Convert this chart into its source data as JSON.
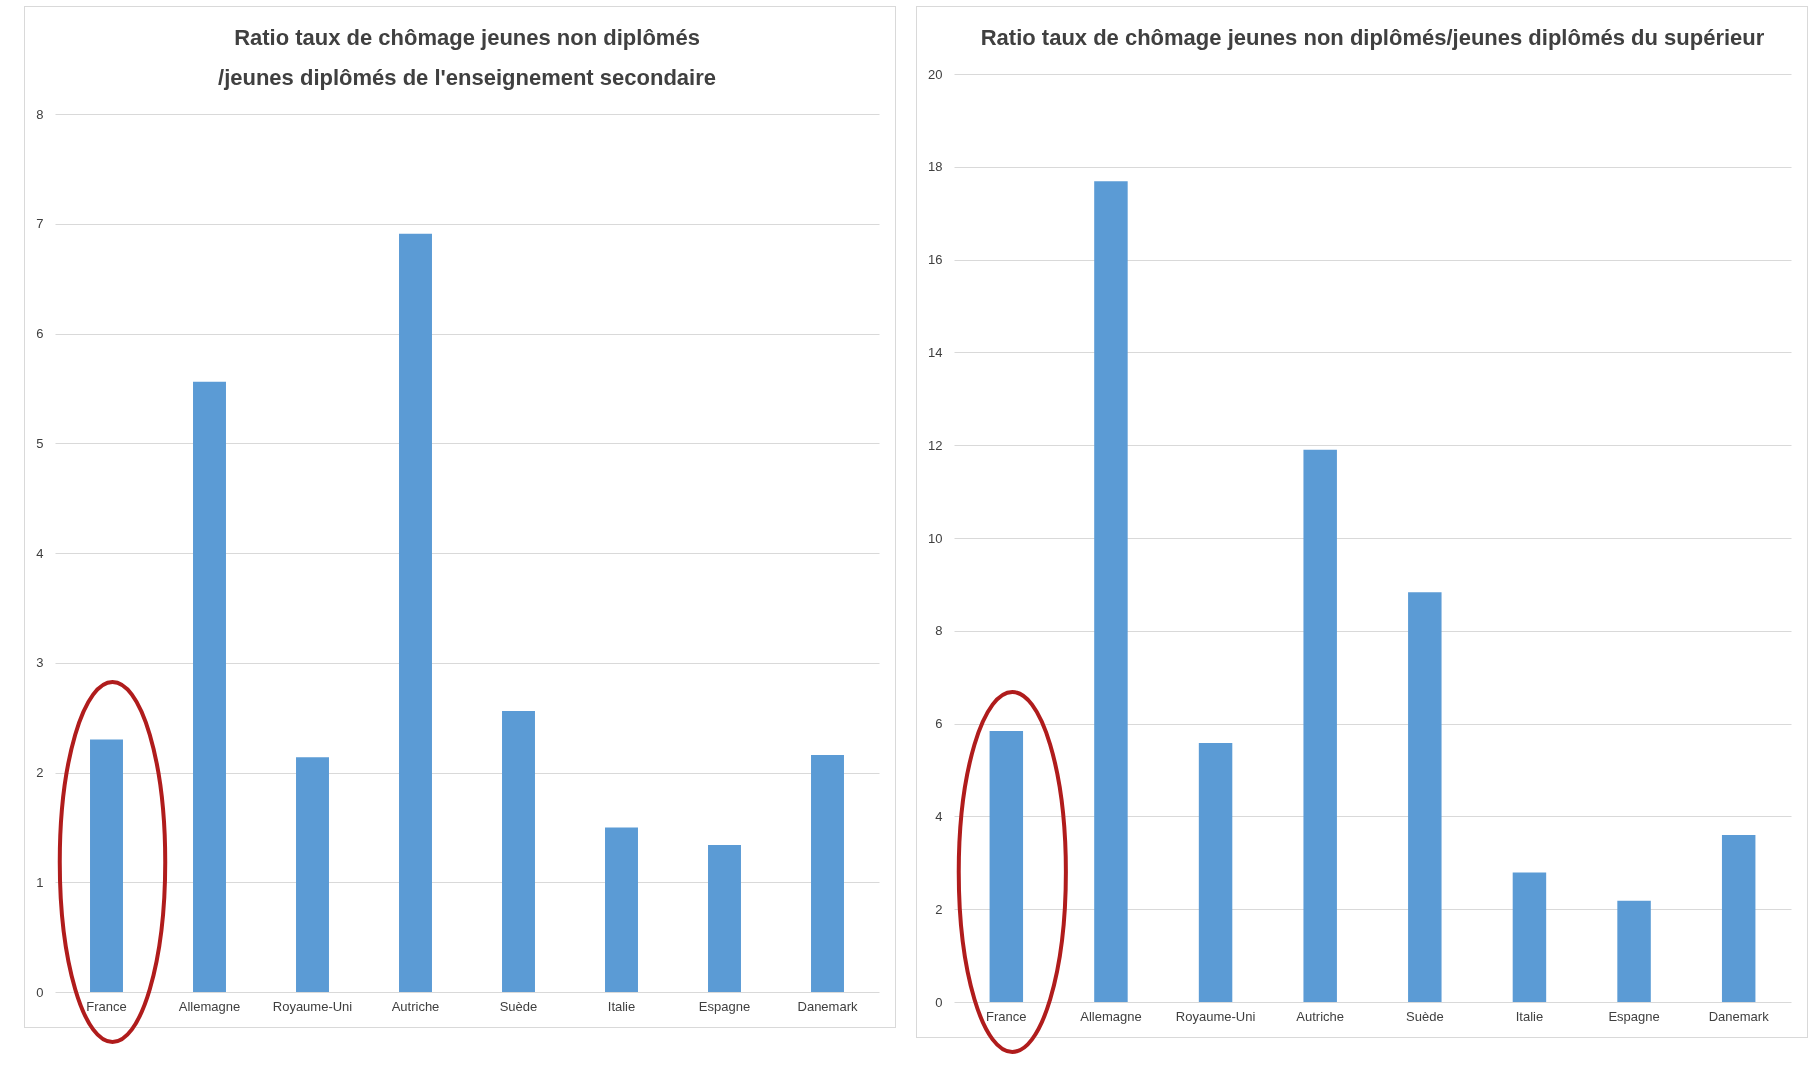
{
  "chart_data": [
    {
      "type": "bar",
      "title": "Ratio taux de chômage jeunes non diplômés\n/jeunes diplômés de l'enseignement secondaire",
      "categories": [
        "France",
        "Allemagne",
        "Royaume-Uni",
        "Autriche",
        "Suède",
        "Italie",
        "Espagne",
        "Danemark"
      ],
      "values": [
        2.3,
        5.56,
        2.14,
        6.91,
        2.56,
        1.5,
        1.34,
        2.16
      ],
      "color": "#5b9bd5",
      "ylim": [
        0,
        8
      ],
      "yticks": [
        0,
        1,
        2,
        3,
        4,
        5,
        6,
        7,
        8
      ],
      "grid": "y"
    },
    {
      "type": "bar",
      "title": "Ratio taux de chômage jeunes non diplômés/jeunes diplômés du supérieur",
      "categories": [
        "France",
        "Allemagne",
        "Royaume-Uni",
        "Autriche",
        "Suède",
        "Italie",
        "Espagne",
        "Danemark"
      ],
      "values": [
        5.84,
        17.69,
        5.58,
        11.9,
        8.83,
        2.79,
        2.18,
        3.6
      ],
      "color": "#5b9bd5",
      "ylim": [
        0,
        20
      ],
      "yticks": [
        0,
        2,
        4,
        6,
        8,
        10,
        12,
        14,
        16,
        18,
        20
      ],
      "grid": "y"
    }
  ]
}
